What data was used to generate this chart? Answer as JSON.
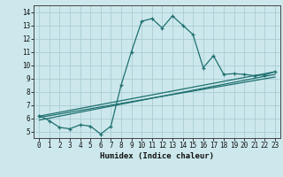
{
  "xlabel": "Humidex (Indice chaleur)",
  "xlim": [
    -0.5,
    23.5
  ],
  "ylim": [
    4.5,
    14.5
  ],
  "xticks": [
    0,
    1,
    2,
    3,
    4,
    5,
    6,
    7,
    8,
    9,
    10,
    11,
    12,
    13,
    14,
    15,
    16,
    17,
    18,
    19,
    20,
    21,
    22,
    23
  ],
  "yticks": [
    5,
    6,
    7,
    8,
    9,
    10,
    11,
    12,
    13,
    14
  ],
  "bg_color": "#cce8ec",
  "line_color": "#1f7070",
  "grid_color": "#aacdd4",
  "main_x": [
    0,
    1,
    2,
    3,
    4,
    5,
    6,
    7,
    8,
    9,
    10,
    11,
    12,
    13,
    14,
    15,
    16,
    17,
    18,
    19,
    20,
    21,
    22,
    23
  ],
  "main_y": [
    6.2,
    5.8,
    5.3,
    5.2,
    5.5,
    5.4,
    4.8,
    5.4,
    8.5,
    11.0,
    13.3,
    13.5,
    12.8,
    13.7,
    13.0,
    12.3,
    9.8,
    10.7,
    9.3,
    9.35,
    9.3,
    9.2,
    9.25,
    9.5
  ],
  "line1_x": [
    0,
    23
  ],
  "line1_y": [
    6.05,
    9.1
  ],
  "line2_x": [
    0,
    23
  ],
  "line2_y": [
    5.85,
    9.3
  ],
  "line3_x": [
    0,
    23
  ],
  "line3_y": [
    6.15,
    9.5
  ]
}
